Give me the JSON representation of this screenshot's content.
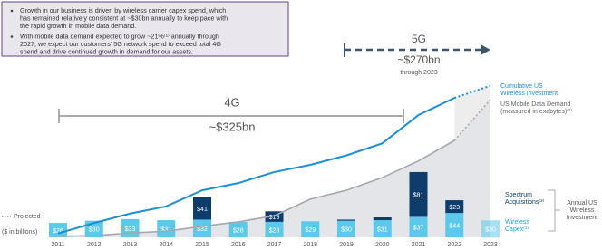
{
  "chart_data": {
    "type": "stacked_bar_line",
    "notes": [
      [
        "Growth in our business is driven by wireless carrier capex spend, which",
        "has remained relatively consistent at ~$30bn annually to keep pace with",
        "the rapid growth in mobile data demand."
      ],
      [
        "With mobile data demand expected to grow ~21%⁽¹⁾ annually through",
        "2027, we expect our customers' 5G network spend to exceed total 4G",
        "spend and drive continued growth in demand for our assets."
      ]
    ],
    "annotations": {
      "g4": {
        "label": "4G",
        "amount": "~$325bn"
      },
      "g5": {
        "label": "5G",
        "amount": "~$270bn",
        "note": "through 2023"
      }
    },
    "categories": [
      "2011",
      "2012",
      "2013",
      "2014",
      "2015",
      "2016",
      "2017",
      "2018",
      "2019",
      "2020",
      "2021",
      "2022",
      "2023"
    ],
    "projected": {
      "label": "Projected",
      "after": "2022"
    },
    "unit_label": "($ in billions)",
    "group_label": [
      "Annual US",
      "Wireless",
      "Investment"
    ],
    "ylim": [
      0,
      280
    ],
    "series": [
      {
        "name": [
          "Wireless",
          "Capex⁽¹⁾"
        ],
        "color": "#5cc8ea",
        "kind": "bar",
        "values": [
          26,
          30,
          33,
          31,
          32,
          28,
          28,
          29,
          30,
          31,
          37,
          44,
          30
        ],
        "value_labels": [
          "$26",
          "$30",
          "$33",
          "$31",
          "$32",
          "$28",
          "$28",
          "$29",
          "$30",
          "$31",
          "$37",
          "$44",
          "$30"
        ]
      },
      {
        "name": [
          "Spectrum",
          "Acquisitions⁽³⁾"
        ],
        "color": "#0e3d6b",
        "kind": "bar",
        "values": [
          null,
          null,
          null,
          null,
          41,
          null,
          19,
          null,
          2,
          5,
          81,
          23,
          null
        ],
        "value_labels": [
          null,
          null,
          null,
          null,
          "$41",
          null,
          "$19",
          null,
          null,
          null,
          "$81",
          "$23",
          null
        ]
      },
      {
        "name": [
          "Cumulative US",
          "Wireless Investment"
        ],
        "color": "#1c8fd6",
        "kind": "line",
        "values": [
          7,
          26,
          43,
          56,
          85,
          98,
          118,
          131,
          148,
          170,
          221,
          252,
          274
        ]
      },
      {
        "name": [
          "US Mobile Data Demand",
          "(measured in exabytes)⁽²⁾"
        ],
        "color": "#a3a8ad",
        "kind": "area",
        "values": [
          2,
          3,
          8,
          11,
          20,
          28,
          39,
          69,
          85,
          108,
          138,
          175,
          249
        ]
      }
    ]
  }
}
